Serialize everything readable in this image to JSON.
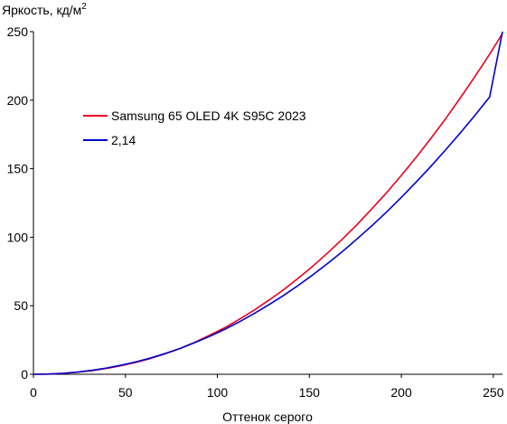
{
  "chart_data": {
    "type": "line",
    "ylabel": "Яркость, кд/м",
    "ylabel_sup": "2",
    "xlabel": "Оттенок серого",
    "xlim": [
      0,
      255
    ],
    "ylim": [
      0,
      250
    ],
    "x_ticks": [
      0,
      50,
      100,
      150,
      200,
      250
    ],
    "y_ticks": [
      0,
      50,
      100,
      150,
      200,
      250
    ],
    "grid": false,
    "legend_position": "upper-left",
    "series": [
      {
        "name": "Samsung 65 OLED 4K S95C 2023",
        "color": "#e8001c",
        "x": [
          0,
          8,
          16,
          24,
          32,
          40,
          48,
          56,
          64,
          72,
          80,
          88,
          96,
          104,
          112,
          120,
          128,
          136,
          144,
          152,
          160,
          168,
          176,
          184,
          192,
          200,
          208,
          216,
          224,
          232,
          240,
          248,
          255
        ],
        "y": [
          0,
          0.2,
          0.7,
          1.5,
          2.7,
          4.3,
          6.3,
          8.8,
          11.7,
          15.1,
          19.0,
          23.5,
          28.6,
          34.0,
          40.2,
          46.8,
          54.0,
          61.7,
          70.2,
          79.0,
          88.6,
          98.7,
          109.3,
          120.8,
          132.5,
          145.1,
          158.2,
          172.0,
          186.3,
          201.5,
          217.2,
          233.6,
          248.7
        ]
      },
      {
        "name": "2,14",
        "color": "#0000cc",
        "x": [
          0,
          8,
          16,
          24,
          32,
          40,
          48,
          56,
          64,
          72,
          80,
          88,
          96,
          104,
          112,
          120,
          128,
          136,
          144,
          152,
          160,
          168,
          176,
          184,
          192,
          200,
          208,
          216,
          224,
          232,
          240,
          248,
          255
        ],
        "y": [
          0,
          0.15,
          0.66,
          1.6,
          2.9,
          4.6,
          6.7,
          9.2,
          12.0,
          15.3,
          19.0,
          23.2,
          27.8,
          32.8,
          38.3,
          44.3,
          50.7,
          57.5,
          64.9,
          72.7,
          80.9,
          89.6,
          98.8,
          108.4,
          118.5,
          129.1,
          140.1,
          151.6,
          163.6,
          176.0,
          188.9,
          202.3,
          250.0
        ]
      }
    ]
  }
}
